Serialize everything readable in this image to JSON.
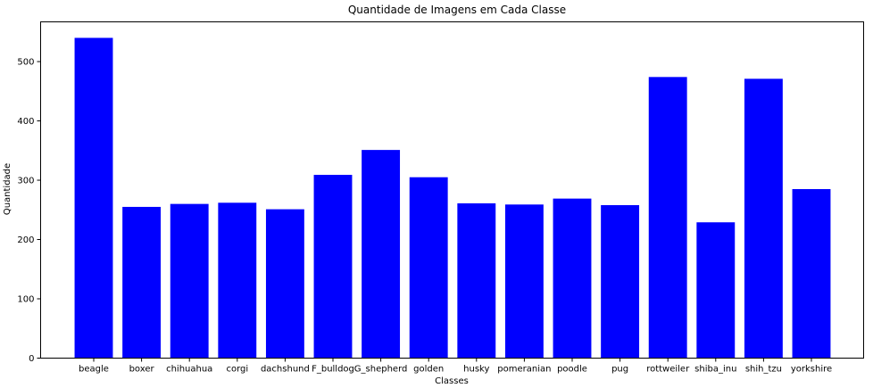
{
  "chart_data": {
    "type": "bar",
    "title": "Quantidade de Imagens em Cada Classe",
    "xlabel": "Classes",
    "ylabel": "Quantidade",
    "categories": [
      "beagle",
      "boxer",
      "chihuahua",
      "corgi",
      "dachshund",
      "F_bulldog",
      "G_shepherd",
      "golden",
      "husky",
      "pomeranian",
      "poodle",
      "pug",
      "rottweiler",
      "shiba_inu",
      "shih_tzu",
      "yorkshire"
    ],
    "values": [
      540,
      255,
      260,
      262,
      251,
      309,
      351,
      305,
      261,
      259,
      269,
      258,
      474,
      229,
      471,
      285
    ],
    "ylim": [
      0,
      567
    ],
    "yticks": [
      0,
      100,
      200,
      300,
      400,
      500
    ],
    "bar_color": "#0000ff",
    "grid": false
  }
}
